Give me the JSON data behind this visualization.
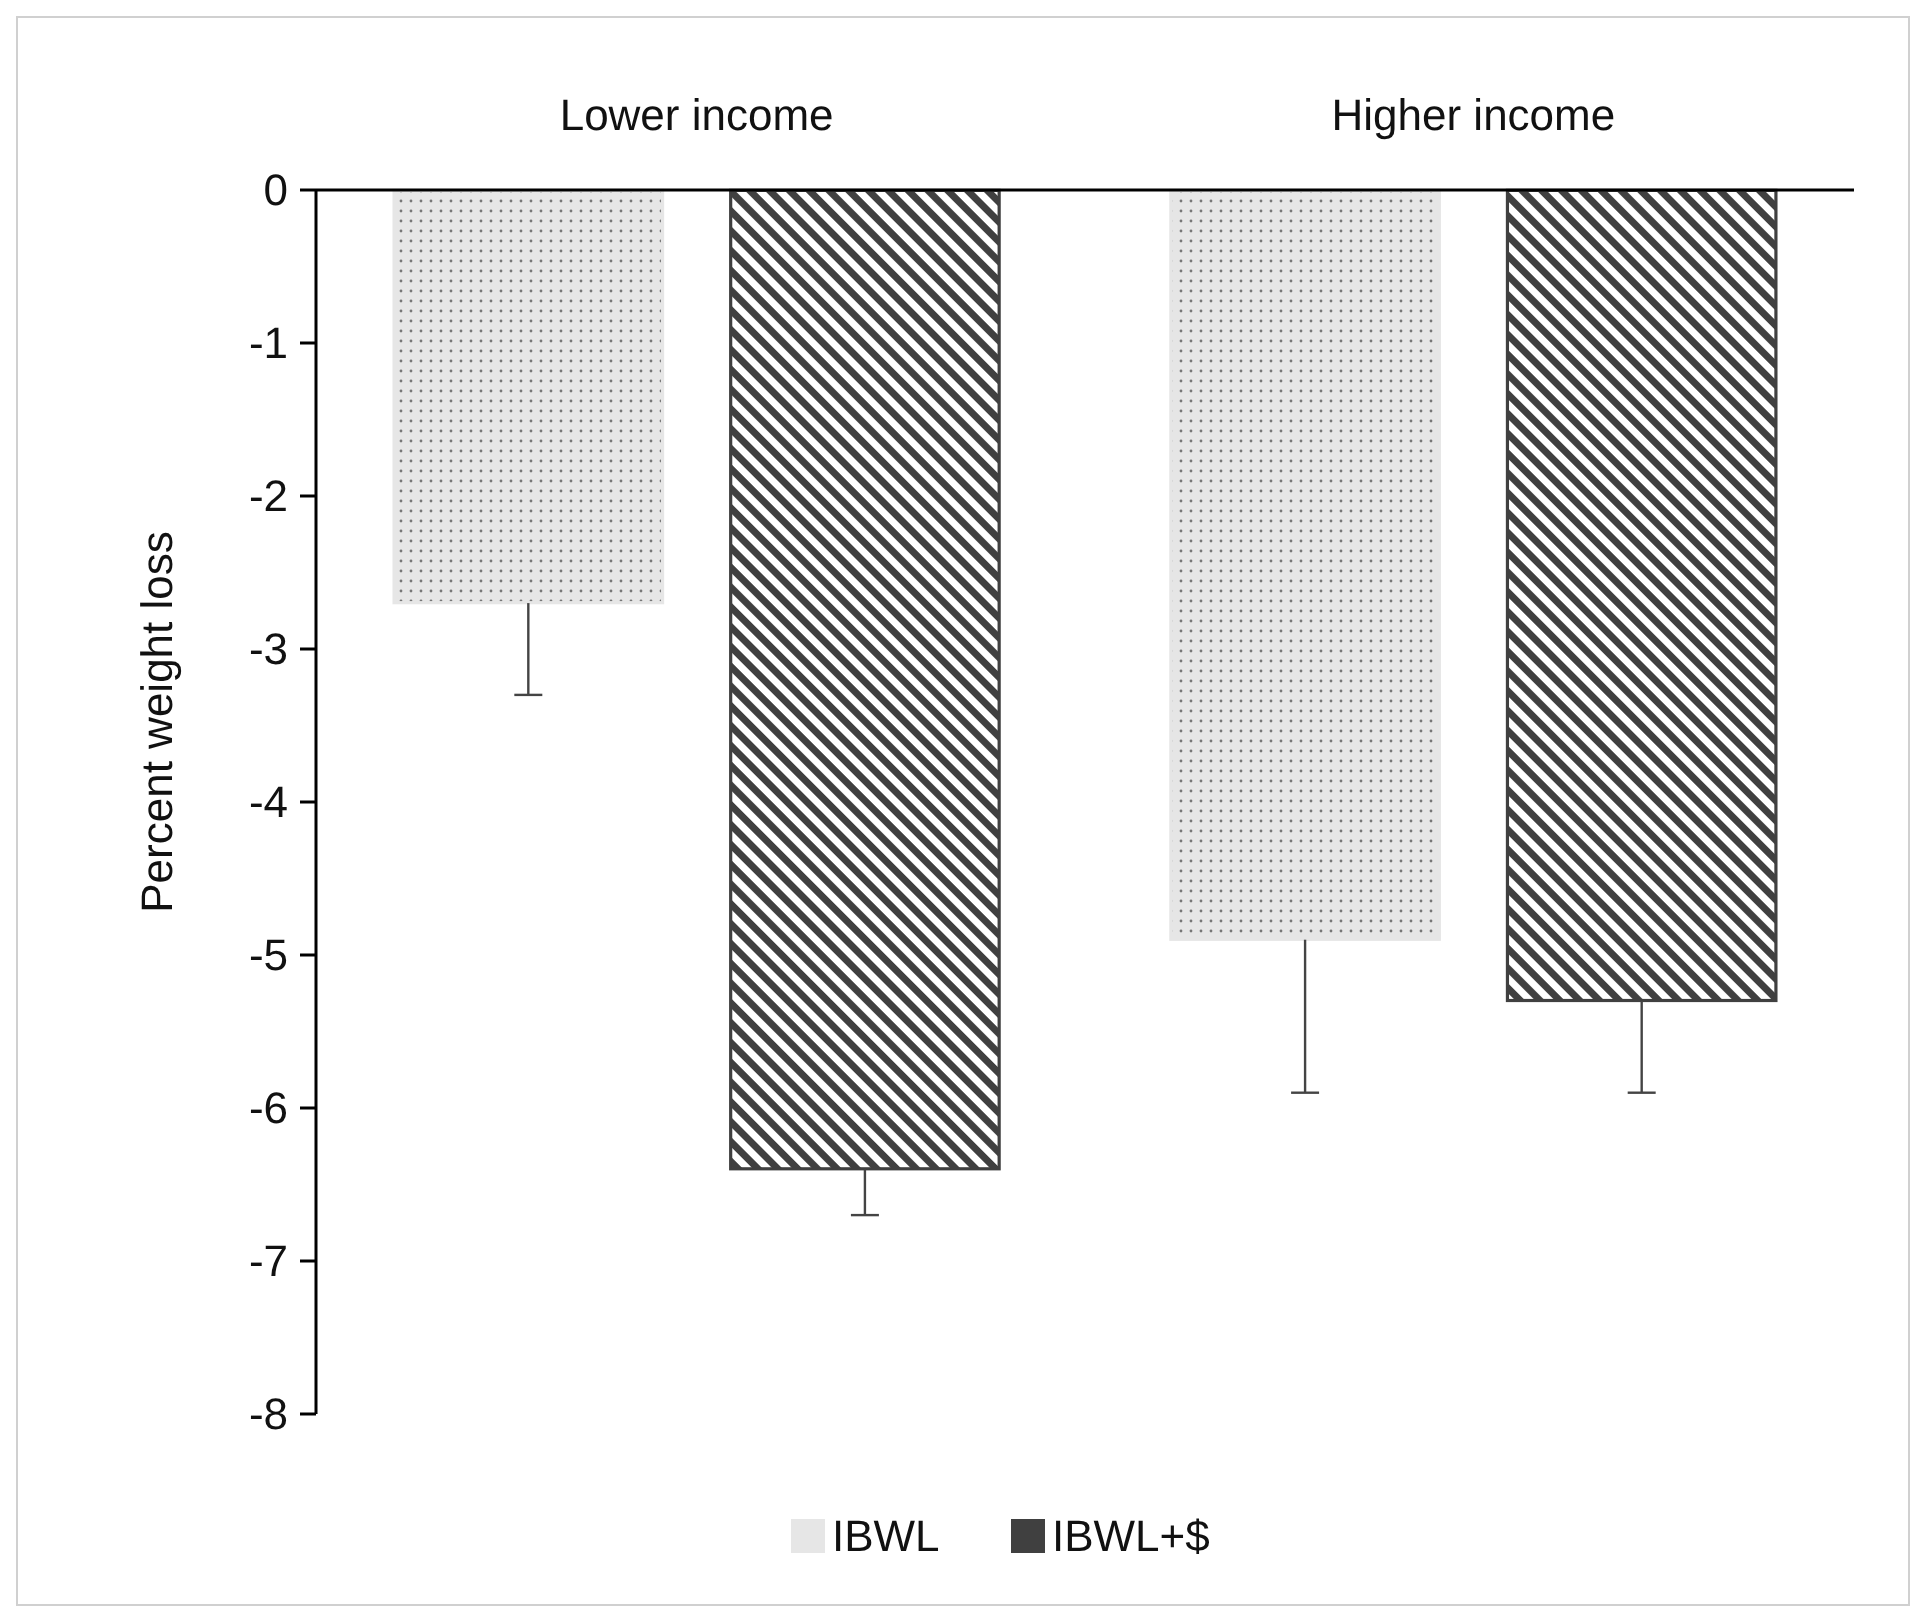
{
  "chart_data": {
    "type": "bar",
    "ylabel": "Percent weight loss",
    "categories": [
      "Lower income",
      "Higher income"
    ],
    "series": [
      {
        "name": "IBWL",
        "color": "#e6e6e6",
        "values": [
          -2.7,
          -4.9
        ],
        "errors": [
          [
            -3.3,
            -2.7
          ],
          [
            -5.9,
            -4.9
          ]
        ]
      },
      {
        "name": "IBWL+$",
        "color": "#404040",
        "values": [
          -6.4,
          -5.3
        ],
        "errors": [
          [
            -6.7,
            -6.4
          ],
          [
            -5.9,
            -5.3
          ]
        ]
      }
    ],
    "ylim": [
      -8,
      0
    ],
    "yticks": [
      0,
      -1,
      -2,
      -3,
      -4,
      -5,
      -6,
      -7,
      -8
    ],
    "grid": false,
    "legend": "bottom"
  }
}
